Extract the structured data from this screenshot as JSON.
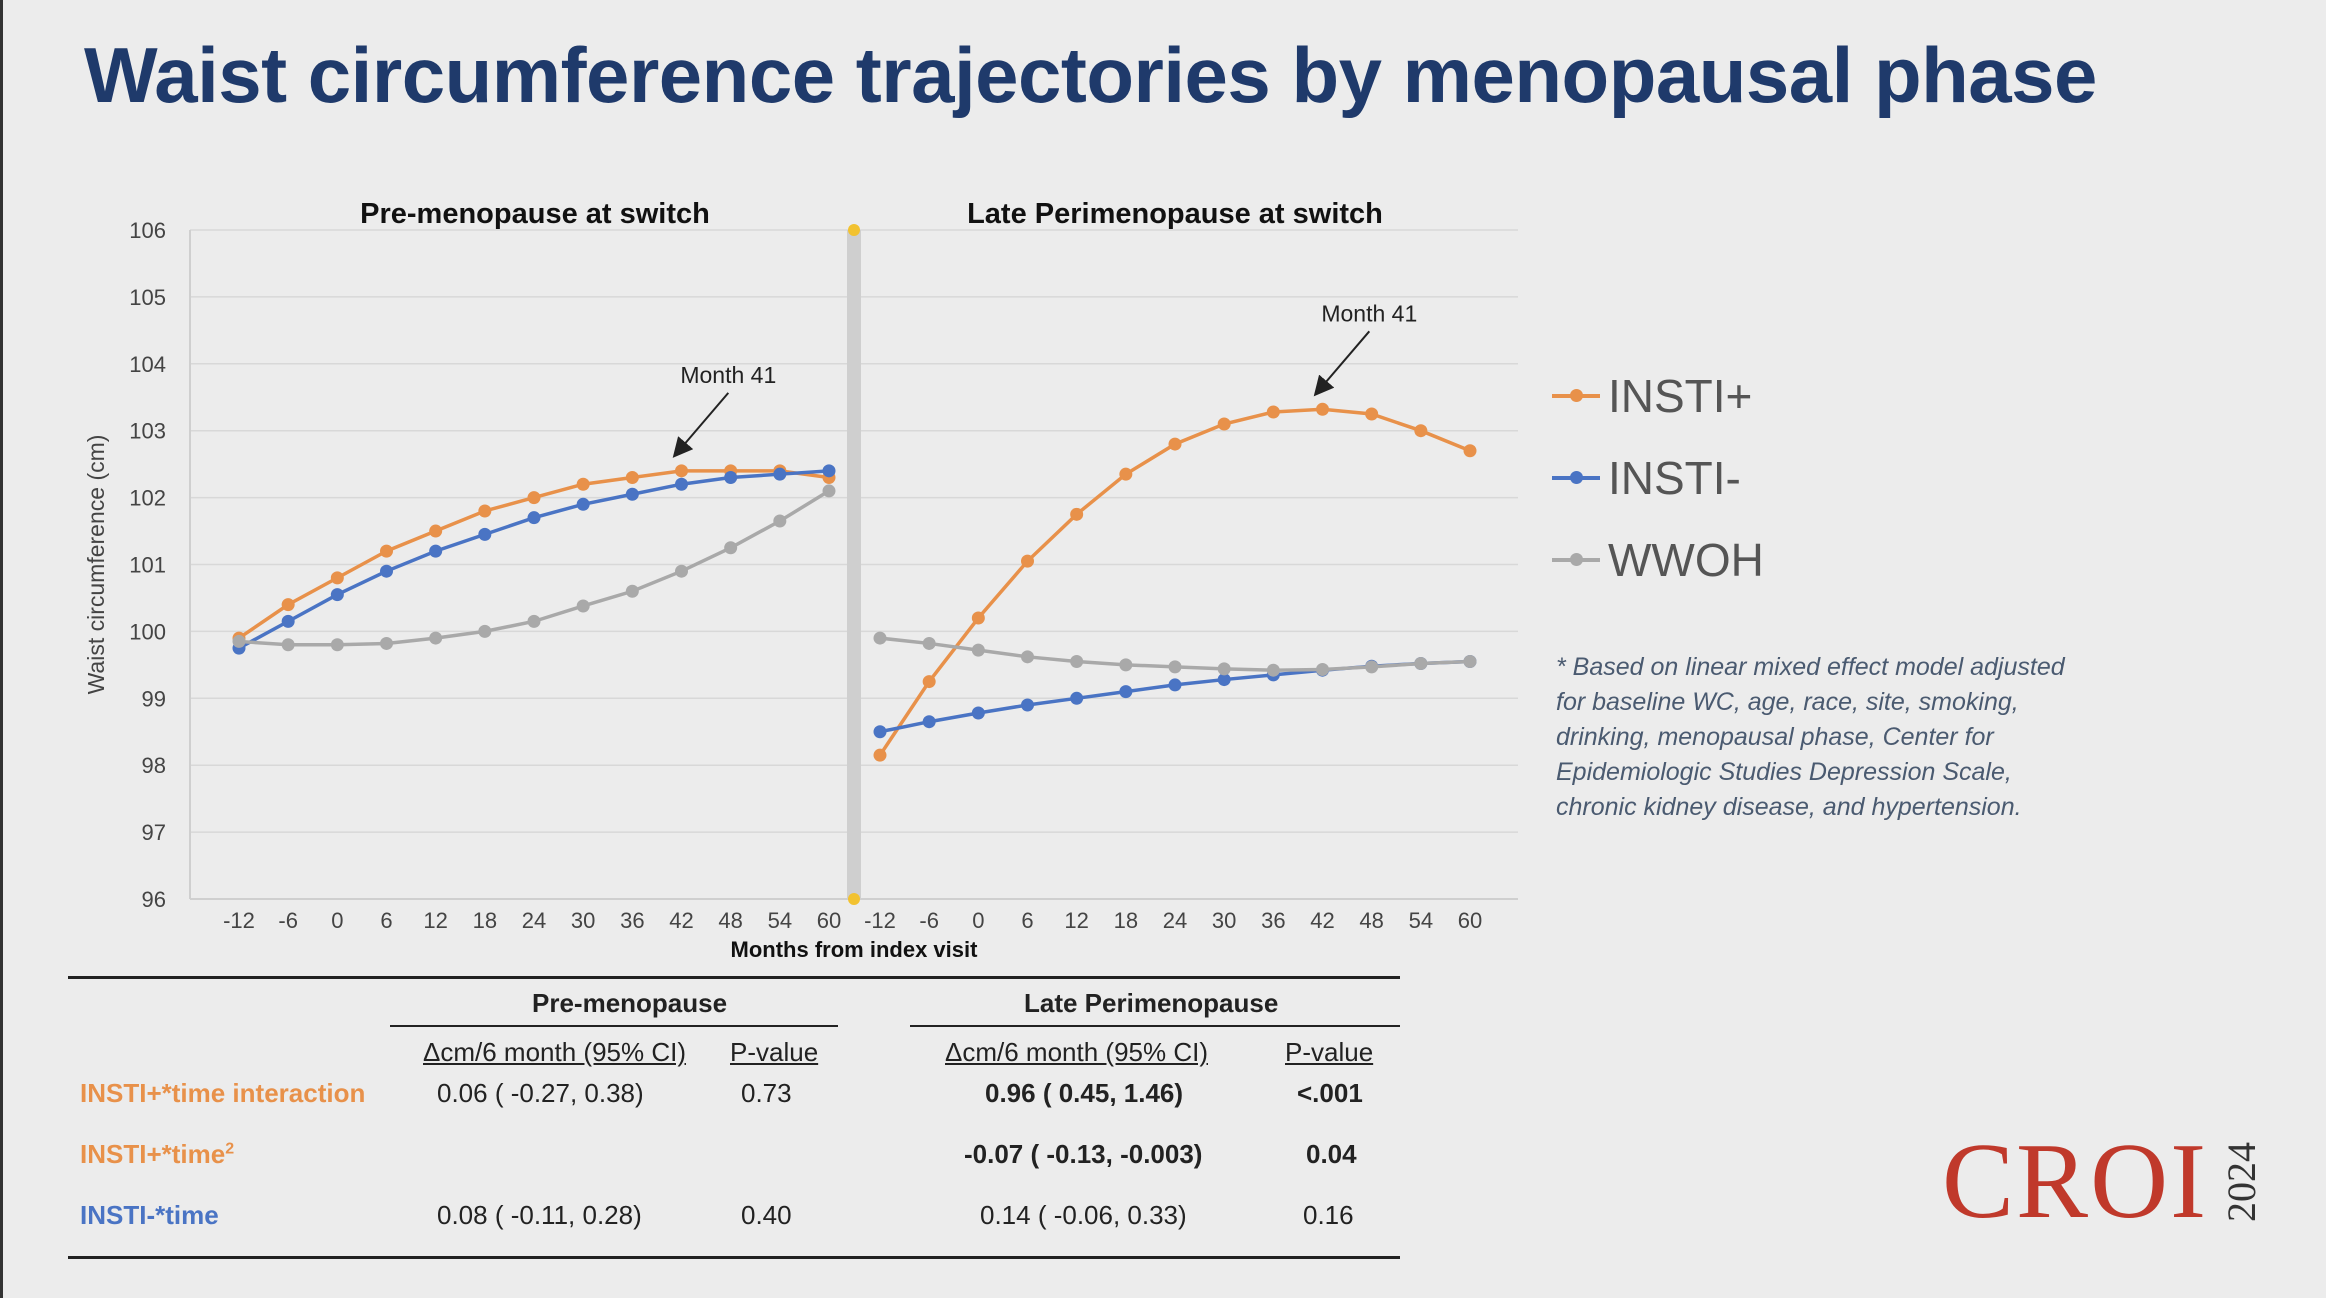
{
  "slide": {
    "title": "Waist circumference trajectories by menopausal phase"
  },
  "colors": {
    "title": "#1f3a6b",
    "insti_plus": "#e8914a",
    "insti_minus": "#4a74c4",
    "wwoh": "#a9a9a9",
    "divider": "#cfcfcf",
    "endpoint": "#f2c230"
  },
  "chart_data": [
    {
      "type": "line",
      "title": "Pre-menopause at switch",
      "xlabel": "Months from index visit",
      "ylabel": "Waist circumference (cm)",
      "ylim": [
        96,
        106
      ],
      "yticks": [
        96,
        97,
        98,
        99,
        100,
        101,
        102,
        103,
        104,
        105,
        106
      ],
      "x": [
        -12,
        -6,
        0,
        6,
        12,
        18,
        24,
        30,
        36,
        42,
        48,
        54,
        60
      ],
      "series": [
        {
          "name": "INSTI+",
          "values": [
            99.9,
            100.4,
            100.8,
            101.2,
            101.5,
            101.8,
            102.0,
            102.2,
            102.3,
            102.4,
            102.4,
            102.4,
            102.3
          ]
        },
        {
          "name": "INSTI-",
          "values": [
            99.75,
            100.15,
            100.55,
            100.9,
            101.2,
            101.45,
            101.7,
            101.9,
            102.05,
            102.2,
            102.3,
            102.35,
            102.4
          ]
        },
        {
          "name": "WWOH",
          "values": [
            99.85,
            99.8,
            99.8,
            99.82,
            99.9,
            100.0,
            100.15,
            100.38,
            100.6,
            100.9,
            101.25,
            101.65,
            102.1
          ]
        }
      ],
      "annotation": {
        "text": "Month 41",
        "x": 41,
        "y": 102.4
      },
      "legend": "right"
    },
    {
      "type": "line",
      "title": "Late Perimenopause at switch",
      "xlabel": "Months from index visit",
      "ylim": [
        96,
        106
      ],
      "x": [
        -12,
        -6,
        0,
        6,
        12,
        18,
        24,
        30,
        36,
        42,
        48,
        54,
        60
      ],
      "series": [
        {
          "name": "INSTI+",
          "values": [
            98.15,
            99.25,
            100.2,
            101.05,
            101.75,
            102.35,
            102.8,
            103.1,
            103.28,
            103.32,
            103.25,
            103.0,
            102.7
          ]
        },
        {
          "name": "INSTI-",
          "values": [
            98.5,
            98.65,
            98.78,
            98.9,
            99.0,
            99.1,
            99.2,
            99.28,
            99.35,
            99.42,
            99.48,
            99.52,
            99.55
          ]
        },
        {
          "name": "WWOH",
          "values": [
            99.9,
            99.82,
            99.72,
            99.62,
            99.55,
            99.5,
            99.47,
            99.44,
            99.42,
            99.43,
            99.47,
            99.52,
            99.55
          ]
        }
      ],
      "annotation": {
        "text": "Month 41",
        "x": 41,
        "y": 103.32
      }
    }
  ],
  "legend": {
    "items": [
      "INSTI+",
      "INSTI-",
      "WWOH"
    ]
  },
  "note": "* Based on linear mixed effect model adjusted for baseline WC, age, race, site, smoking, drinking, menopausal phase, Center for Epidemiologic Studies Depression Scale, chronic kidney disease, and hypertension.",
  "table": {
    "group_pre": "Pre-menopause",
    "group_late": "Late Perimenopause",
    "col_ci": "Δcm/6 month (95% CI)",
    "col_p": "P-value",
    "rows": [
      {
        "label": "INSTI+*time interaction",
        "sup": "",
        "pre_ci": "0.06 ( -0.27, 0.38)",
        "pre_p": "0.73",
        "late_ci": "0.96 ( 0.45, 1.46)",
        "late_p": "<.001"
      },
      {
        "label": "INSTI+*time",
        "sup": "2",
        "pre_ci": "",
        "pre_p": "",
        "late_ci": "-0.07 ( -0.13, -0.003)",
        "late_p": "0.04"
      },
      {
        "label": "INSTI-*time",
        "sup": "",
        "pre_ci": "0.08 ( -0.11, 0.28)",
        "pre_p": "0.40",
        "late_ci": "0.14 ( -0.06, 0.33)",
        "late_p": "0.16"
      }
    ]
  },
  "logo": {
    "text": "CROI",
    "year": "2024"
  }
}
